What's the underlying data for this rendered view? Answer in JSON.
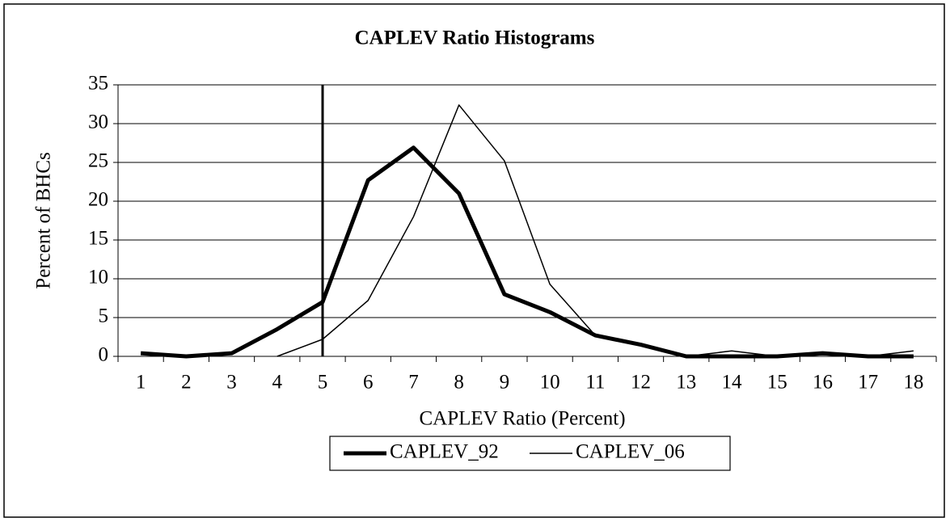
{
  "chart_data": {
    "type": "line",
    "title": "CAPLEV Ratio Histograms",
    "x_label": "CAPLEV Ratio (Percent)",
    "y_label": "Percent of BHCs",
    "categories": [
      "1",
      "2",
      "3",
      "4",
      "5",
      "6",
      "7",
      "8",
      "9",
      "10",
      "11",
      "12",
      "13",
      "14",
      "15",
      "16",
      "17",
      "18"
    ],
    "series": [
      {
        "name": "CAPLEV_92",
        "color": "#000000",
        "width": 5,
        "values": [
          0.4,
          0,
          0.4,
          3.5,
          7,
          22.7,
          26.9,
          21,
          8,
          5.7,
          2.7,
          1.5,
          0,
          0,
          0,
          0.4,
          0,
          0
        ]
      },
      {
        "name": "CAPLEV_06",
        "color": "#000000",
        "width": 1.5,
        "values": [
          null,
          null,
          null,
          0,
          2.2,
          7.2,
          18,
          32.4,
          25.2,
          9.3,
          2.7,
          1.5,
          0,
          0.7,
          0,
          0.2,
          0,
          0.7
        ]
      }
    ],
    "reference_line_category": "5",
    "ylim": [
      0,
      35
    ],
    "yticks": [
      0,
      5,
      10,
      15,
      20,
      25,
      30,
      35
    ],
    "grid": true,
    "legend": "bottom"
  }
}
